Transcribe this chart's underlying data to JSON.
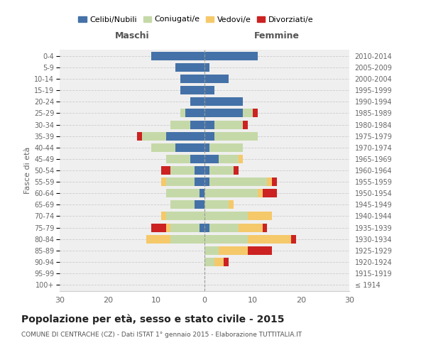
{
  "age_groups": [
    "100+",
    "95-99",
    "90-94",
    "85-89",
    "80-84",
    "75-79",
    "70-74",
    "65-69",
    "60-64",
    "55-59",
    "50-54",
    "45-49",
    "40-44",
    "35-39",
    "30-34",
    "25-29",
    "20-24",
    "15-19",
    "10-14",
    "5-9",
    "0-4"
  ],
  "birth_years": [
    "≤ 1914",
    "1915-1919",
    "1920-1924",
    "1925-1929",
    "1930-1934",
    "1935-1939",
    "1940-1944",
    "1945-1949",
    "1950-1954",
    "1955-1959",
    "1960-1964",
    "1965-1969",
    "1970-1974",
    "1975-1979",
    "1980-1984",
    "1985-1989",
    "1990-1994",
    "1995-1999",
    "2000-2004",
    "2005-2009",
    "2010-2014"
  ],
  "colors": {
    "celibi": "#4472a8",
    "coniugati": "#c5d9a8",
    "vedovi": "#f5c96a",
    "divorziati": "#cc2222"
  },
  "males": {
    "celibi": [
      0,
      0,
      0,
      0,
      0,
      1,
      0,
      2,
      1,
      2,
      2,
      3,
      6,
      8,
      3,
      4,
      3,
      5,
      5,
      6,
      11
    ],
    "coniugati": [
      0,
      0,
      0,
      0,
      7,
      6,
      8,
      5,
      7,
      6,
      5,
      5,
      5,
      5,
      4,
      1,
      0,
      0,
      0,
      0,
      0
    ],
    "vedovi": [
      0,
      0,
      0,
      0,
      5,
      1,
      1,
      0,
      0,
      1,
      0,
      0,
      0,
      0,
      0,
      0,
      0,
      0,
      0,
      0,
      0
    ],
    "divorziati": [
      0,
      0,
      0,
      0,
      0,
      3,
      0,
      0,
      0,
      0,
      2,
      0,
      0,
      1,
      0,
      0,
      0,
      0,
      0,
      0,
      0
    ]
  },
  "females": {
    "celibi": [
      0,
      0,
      0,
      0,
      0,
      1,
      0,
      0,
      0,
      1,
      1,
      3,
      1,
      2,
      2,
      8,
      8,
      2,
      5,
      1,
      11
    ],
    "coniugati": [
      0,
      0,
      2,
      3,
      9,
      6,
      9,
      5,
      11,
      12,
      5,
      4,
      7,
      9,
      6,
      2,
      0,
      0,
      0,
      0,
      0
    ],
    "vedovi": [
      0,
      0,
      2,
      6,
      9,
      5,
      5,
      1,
      1,
      1,
      0,
      1,
      0,
      0,
      0,
      0,
      0,
      0,
      0,
      0,
      0
    ],
    "divorziati": [
      0,
      0,
      1,
      5,
      1,
      1,
      0,
      0,
      3,
      1,
      1,
      0,
      0,
      0,
      1,
      1,
      0,
      0,
      0,
      0,
      0
    ]
  },
  "title": "Popolazione per età, sesso e stato civile - 2015",
  "subtitle": "COMUNE DI CENTRACHE (CZ) - Dati ISTAT 1° gennaio 2015 - Elaborazione TUTTITALIA.IT",
  "header_left": "Maschi",
  "header_right": "Femmine",
  "ylabel_left": "Fasce di età",
  "xlim": 30,
  "legend_labels": [
    "Celibi/Nubili",
    "Coniugati/e",
    "Vedovi/e",
    "Divorziati/e"
  ]
}
